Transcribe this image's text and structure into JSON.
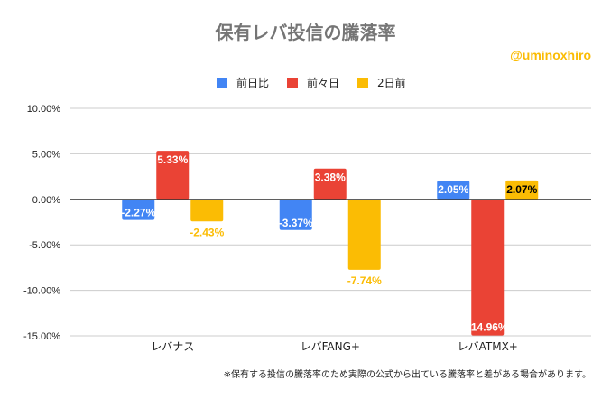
{
  "chart_data": {
    "type": "bar",
    "title": "保有レバ投信の騰落率",
    "categories": [
      "レバナス",
      "レバFANG+",
      "レバATMX+"
    ],
    "series": [
      {
        "name": "前日比",
        "color": "#4285f4",
        "values": [
          -2.27,
          -3.37,
          2.05
        ]
      },
      {
        "name": "前々日",
        "color": "#ea4335",
        "values": [
          5.33,
          3.38,
          -14.96
        ]
      },
      {
        "name": "2日前",
        "color": "#fbbc04",
        "values": [
          -2.43,
          -7.74,
          2.07
        ]
      }
    ],
    "ylim": [
      -15,
      10
    ],
    "yticks": [
      "10.00%",
      "5.00%",
      "0.00%",
      "-5.00%",
      "-10.00%",
      "-15.00%"
    ],
    "grid": true,
    "legend": "top",
    "xlabel": "",
    "ylabel": ""
  },
  "annotations": {
    "handle": "@uminoxhiro",
    "note": "※保有する投信の騰落率のため実際の公式から出ている騰落率と差がある場合があります。"
  }
}
